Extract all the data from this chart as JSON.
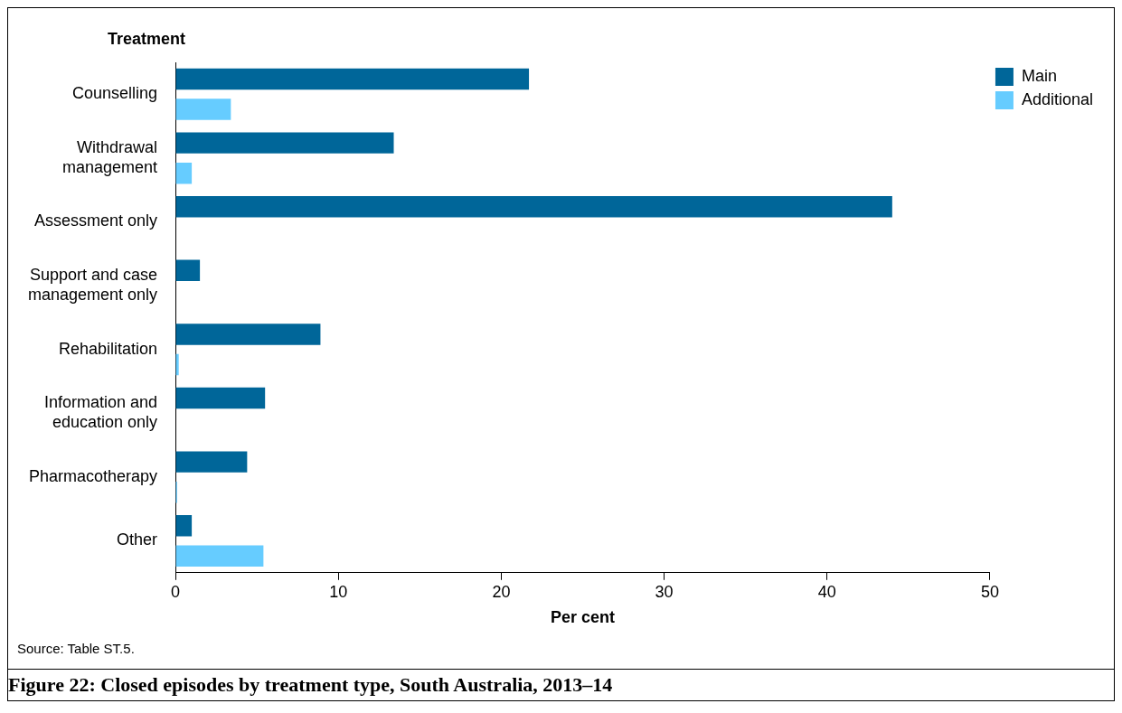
{
  "chart_data": {
    "type": "bar",
    "orientation": "horizontal",
    "title": "Figure 22: Closed episodes by treatment type, South Australia, 2013–14",
    "ylabel": "Treatment",
    "xlabel": "Per cent",
    "annotations": [
      "Source: Table ST.5."
    ],
    "categories": [
      "Counselling",
      "Withdrawal management",
      "Assessment only",
      "Support and case management only",
      "Rehabilitation",
      "Information and education only",
      "Pharmacotherapy",
      "Other"
    ],
    "series": [
      {
        "name": "Main",
        "color": "#006699",
        "values": [
          21.7,
          13.4,
          44.0,
          1.5,
          8.9,
          5.5,
          4.4,
          1.0
        ]
      },
      {
        "name": "Additional",
        "color": "#66ccff",
        "values": [
          3.4,
          1.0,
          0,
          0,
          0.2,
          0,
          0.1,
          5.4
        ]
      }
    ],
    "xlim": [
      0,
      50
    ],
    "xticks": [
      0,
      10,
      20,
      30,
      40,
      50
    ],
    "grid": false,
    "legend": "top right"
  }
}
